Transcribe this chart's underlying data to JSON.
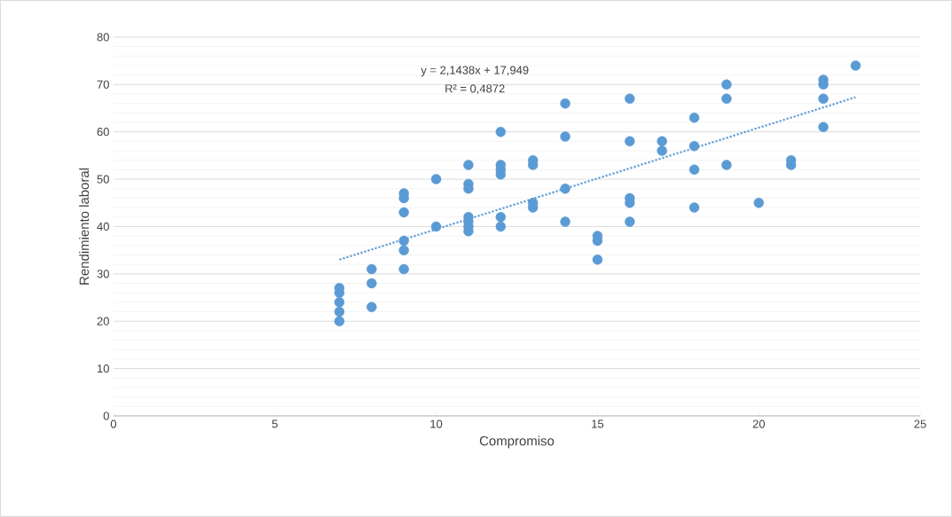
{
  "chart_data": {
    "type": "scatter",
    "xlabel": "Compromiso",
    "ylabel": "Rendimiento laboral",
    "annotations": [
      "y = 2,1438x + 17,949",
      "R² = 0,4872"
    ],
    "xlim": [
      0,
      25
    ],
    "ylim": [
      0,
      80
    ],
    "xticks": [
      0,
      5,
      10,
      15,
      20,
      25
    ],
    "yticks": [
      0,
      10,
      20,
      30,
      40,
      50,
      60,
      70,
      80
    ],
    "grid": "y",
    "series": [
      {
        "color": "#5b9bd5",
        "marker": "circle",
        "x": [
          7,
          7,
          7,
          7,
          7,
          8,
          8,
          8,
          9,
          9,
          9,
          9,
          9,
          9,
          10,
          10,
          11,
          11,
          11,
          11,
          11,
          11,
          11,
          12,
          12,
          12,
          12,
          12,
          12,
          13,
          13,
          13,
          13,
          14,
          14,
          14,
          14,
          15,
          15,
          15,
          16,
          16,
          16,
          16,
          16,
          17,
          17,
          18,
          18,
          18,
          18,
          19,
          19,
          19,
          20,
          21,
          21,
          22,
          22,
          22,
          22,
          23
        ],
        "values": [
          27,
          26,
          24,
          22,
          20,
          31,
          28,
          23,
          47,
          46,
          43,
          37,
          35,
          31,
          50,
          40,
          53,
          49,
          48,
          42,
          41,
          40,
          39,
          60,
          53,
          52,
          51,
          42,
          40,
          54,
          53,
          45,
          44,
          66,
          59,
          48,
          41,
          38,
          37,
          33,
          67,
          58,
          46,
          45,
          41,
          58,
          56,
          63,
          57,
          52,
          44,
          70,
          67,
          53,
          45,
          54,
          53,
          71,
          70,
          67,
          61,
          74
        ]
      },
      {
        "type": "line",
        "color": "#5b9bd5",
        "line_style": "dotted",
        "marker": "none",
        "x": [
          7,
          23
        ],
        "values": [
          33,
          67.3
        ]
      }
    ]
  }
}
